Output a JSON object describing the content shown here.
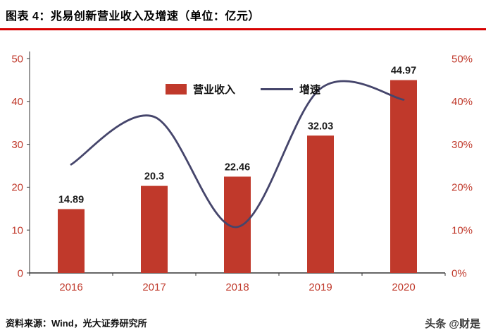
{
  "header": {
    "title": "图表 4：兆易创新营业收入及增速（单位：亿元）"
  },
  "chart_data": {
    "type": "bar",
    "subtype": "bar+line-combo",
    "categories": [
      "2016",
      "2017",
      "2018",
      "2019",
      "2020"
    ],
    "series": [
      {
        "name": "营业收入",
        "type": "bar",
        "axis": "left",
        "unit": "亿元",
        "values": [
          14.89,
          20.3,
          22.46,
          32.03,
          44.97
        ],
        "labels": [
          "14.89",
          "20.3",
          "22.46",
          "32.03",
          "44.97"
        ],
        "color": "#c0392b"
      },
      {
        "name": "增速",
        "type": "line",
        "axis": "right",
        "unit": "%",
        "values": [
          25.3,
          36.4,
          10.7,
          43.0,
          40.4
        ],
        "color": "#45456b"
      }
    ],
    "left_axis": {
      "min": 0,
      "max": 50,
      "ticks": [
        0,
        10,
        20,
        30,
        40,
        50
      ],
      "tick_labels": [
        "0",
        "10",
        "20",
        "30",
        "40",
        "50"
      ]
    },
    "right_axis": {
      "min": 0,
      "max": 50,
      "ticks": [
        0,
        10,
        20,
        30,
        40,
        50
      ],
      "tick_labels": [
        "0%",
        "10%",
        "20%",
        "30%",
        "40%",
        "50%"
      ]
    },
    "grid": false,
    "legend_position": "top-center",
    "line_smoothing": "spline"
  },
  "footer": {
    "source": "资料来源：Wind，光大证券研究所",
    "watermark": "头条 @财是"
  },
  "colors": {
    "bar": "#c0392b",
    "line": "#45456b",
    "axis_text": "#c0392b",
    "underline": "#d60000",
    "label_text": "#1a1a1a",
    "axis_line": "#333333"
  }
}
